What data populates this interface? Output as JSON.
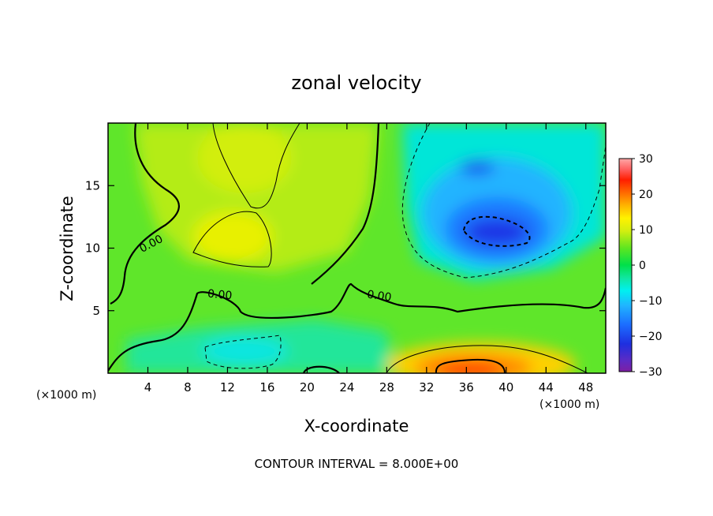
{
  "chart_data": {
    "type": "heatmap",
    "title": "zonal velocity",
    "xlabel": "X-coordinate",
    "ylabel": "Z-coordinate",
    "x_unit_left": "(×1000 m)",
    "x_unit_right": "(×1000 m)",
    "xlim": [
      0,
      50
    ],
    "ylim": [
      0,
      20
    ],
    "x_ticks": [
      4,
      8,
      12,
      16,
      20,
      24,
      28,
      32,
      36,
      40,
      44,
      48
    ],
    "y_ticks": [
      5,
      10,
      15
    ],
    "colorbar": {
      "min": -30,
      "max": 30,
      "ticks": [
        30,
        20,
        10,
        0,
        -10,
        -20,
        -30
      ]
    },
    "contour_labels": [
      {
        "text": "0.00",
        "x": 4.5,
        "z": 10.1
      },
      {
        "text": "0.00",
        "x": 11.2,
        "z": 6.0
      },
      {
        "text": "0.00",
        "x": 27.2,
        "z": 5.9
      }
    ],
    "features": [
      {
        "kind": "negative-core",
        "x": 38,
        "z": 11.3,
        "value": -18
      },
      {
        "kind": "negative-core",
        "x": 37,
        "z": 16.4,
        "value": -14
      },
      {
        "kind": "positive-core",
        "x": 13,
        "z": 10.8,
        "value": 10
      },
      {
        "kind": "positive-core",
        "x": 16,
        "z": 17.0,
        "value": 8
      },
      {
        "kind": "positive-core",
        "x": 37,
        "z": 0.5,
        "value": 20
      },
      {
        "kind": "negative-core",
        "x": 14,
        "z": 1.4,
        "value": -7
      }
    ],
    "contour_interval_text": "CONTOUR INTERVAL = 8.000E+00"
  }
}
